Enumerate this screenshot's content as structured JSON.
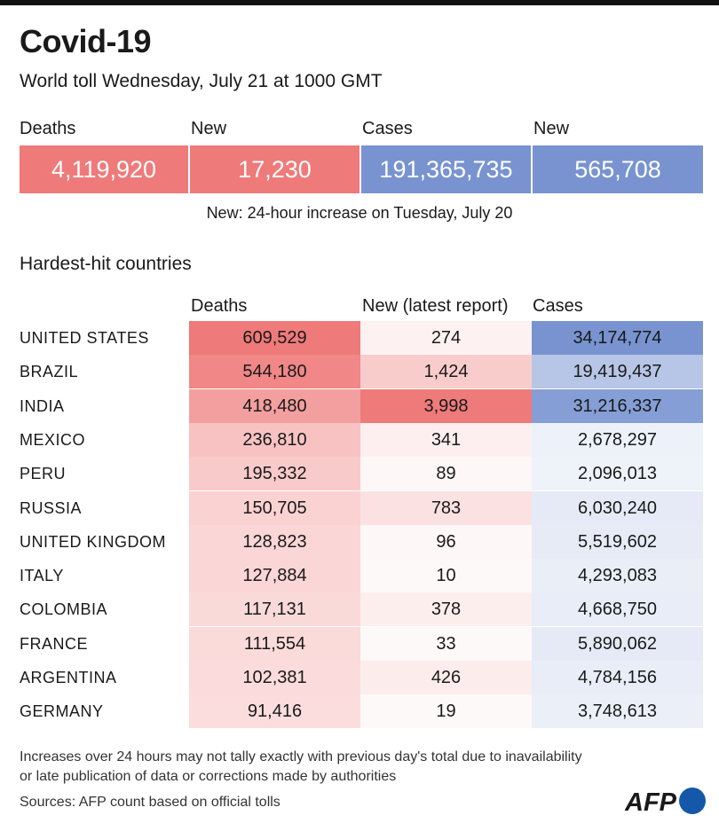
{
  "title": "Covid-19",
  "subtitle": "World toll Wednesday, July 21 at 1000 GMT",
  "totals": {
    "deaths_label": "Deaths",
    "deaths": "4,119,920",
    "new_deaths_label": "New",
    "new_deaths": "17,230",
    "cases_label": "Cases",
    "cases": "191,365,735",
    "new_cases_label": "New",
    "new_cases": "565,708"
  },
  "note": "New: 24-hour increase on Tuesday, July 20",
  "section_title": "Hardest-hit countries",
  "colors": {
    "deaths_accent": "#ef7a7a",
    "cases_accent": "#7893d0",
    "topbar": "#111111"
  },
  "chart_data": {
    "type": "table",
    "columns": [
      "Deaths",
      "New (latest report)",
      "Cases"
    ],
    "rows": [
      {
        "country": "UNITED STATES",
        "deaths": "609,529",
        "new": "274",
        "cases": "34,174,774"
      },
      {
        "country": "BRAZIL",
        "deaths": "544,180",
        "new": "1,424",
        "cases": "19,419,437"
      },
      {
        "country": "INDIA",
        "deaths": "418,480",
        "new": "3,998",
        "cases": "31,216,337"
      },
      {
        "country": "MEXICO",
        "deaths": "236,810",
        "new": "341",
        "cases": "2,678,297"
      },
      {
        "country": "PERU",
        "deaths": "195,332",
        "new": "89",
        "cases": "2,096,013"
      },
      {
        "country": "RUSSIA",
        "deaths": "150,705",
        "new": "783",
        "cases": "6,030,240"
      },
      {
        "country": "UNITED KINGDOM",
        "deaths": "128,823",
        "new": "96",
        "cases": "5,519,602"
      },
      {
        "country": "ITALY",
        "deaths": "127,884",
        "new": "10",
        "cases": "4,293,083"
      },
      {
        "country": "COLOMBIA",
        "deaths": "117,131",
        "new": "378",
        "cases": "4,668,750"
      },
      {
        "country": "FRANCE",
        "deaths": "111,554",
        "new": "33",
        "cases": "5,890,062"
      },
      {
        "country": "ARGENTINA",
        "deaths": "102,381",
        "new": "426",
        "cases": "4,784,156"
      },
      {
        "country": "GERMANY",
        "deaths": "91,416",
        "new": "19",
        "cases": "3,748,613"
      }
    ]
  },
  "footnote_line1": "Increases over 24 hours may not tally exactly with previous day's total due to inavailability",
  "footnote_line2": "or late publication of data or corrections made by authorities",
  "sources": "Sources: AFP count based on official tolls",
  "logo_text": "AFP"
}
